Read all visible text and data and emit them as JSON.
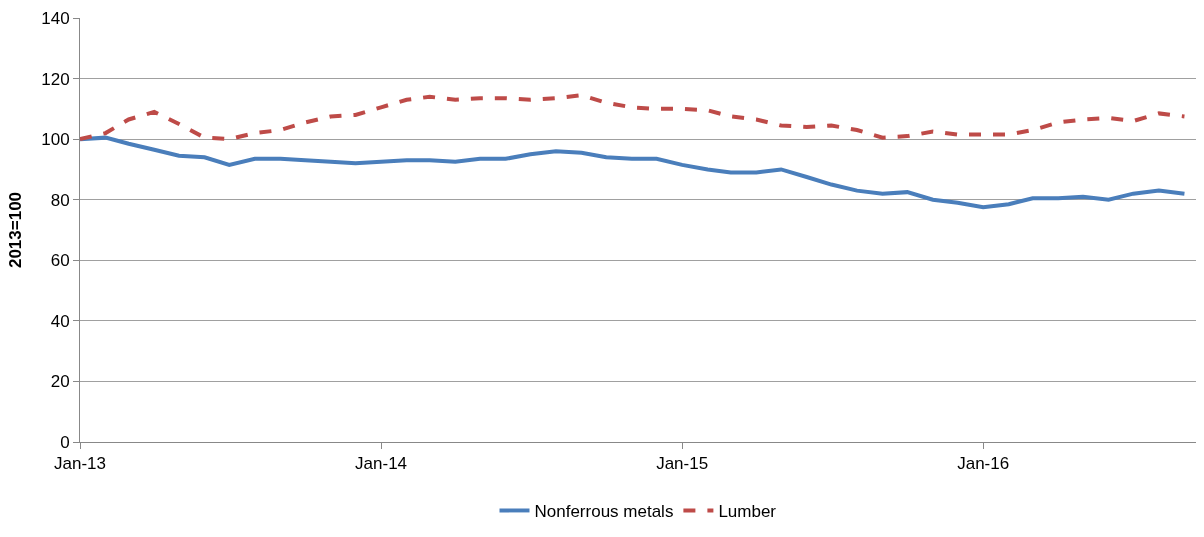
{
  "chart_data": {
    "type": "line",
    "ylabel": "2013=100",
    "x": [
      "2013-01",
      "2013-02",
      "2013-03",
      "2013-04",
      "2013-05",
      "2013-06",
      "2013-07",
      "2013-08",
      "2013-09",
      "2013-10",
      "2013-11",
      "2013-12",
      "2014-01",
      "2014-02",
      "2014-03",
      "2014-04",
      "2014-05",
      "2014-06",
      "2014-07",
      "2014-08",
      "2014-09",
      "2014-10",
      "2014-11",
      "2014-12",
      "2015-01",
      "2015-02",
      "2015-03",
      "2015-04",
      "2015-05",
      "2015-06",
      "2015-07",
      "2015-08",
      "2015-09",
      "2015-10",
      "2015-11",
      "2015-12",
      "2016-01",
      "2016-02",
      "2016-03",
      "2016-04",
      "2016-05",
      "2016-06",
      "2016-07",
      "2016-08",
      "2016-09"
    ],
    "series": [
      {
        "name": "Nonferrous metals",
        "color": "#4a7ebb",
        "line_style": "solid",
        "values": [
          100,
          100.5,
          98.5,
          96.5,
          94.5,
          94,
          91.5,
          93.5,
          93.5,
          93,
          92.5,
          92,
          92.5,
          93,
          93,
          92.5,
          93.5,
          93.5,
          95,
          96,
          95.5,
          94,
          93.5,
          93.5,
          91.5,
          90,
          89,
          89,
          90,
          87.5,
          85,
          83,
          82,
          82.5,
          80,
          79,
          77.5,
          78.5,
          80.5,
          80.5,
          81,
          80,
          82,
          83,
          82
        ]
      },
      {
        "name": "Lumber",
        "color": "#be4b48",
        "line_style": "dashed",
        "values": [
          100,
          102,
          106.5,
          109,
          105,
          100.5,
          100,
          102,
          103,
          105.5,
          107.5,
          108,
          110.5,
          113,
          114,
          113,
          113.5,
          113.5,
          113,
          113.5,
          114.5,
          112,
          110.5,
          110,
          110,
          109.5,
          107.5,
          106.5,
          104.5,
          104,
          104.5,
          103,
          100.5,
          101,
          102.5,
          101.5,
          101.5,
          101.5,
          103,
          105.5,
          106.5,
          107,
          106,
          108.5,
          107.5
        ]
      }
    ],
    "xlim": [
      "2013-01-01",
      "2016-09-15"
    ],
    "xticks": [
      {
        "value": "2013-01",
        "label": "Jan-13"
      },
      {
        "value": "2014-01",
        "label": "Jan-14"
      },
      {
        "value": "2015-01",
        "label": "Jan-15"
      },
      {
        "value": "2016-01",
        "label": "Jan-16"
      }
    ],
    "ylim": [
      0,
      140
    ],
    "yticks": [
      0,
      20,
      40,
      60,
      80,
      100,
      120,
      140
    ],
    "grid": "y",
    "legend": "bottom",
    "marker": "none"
  }
}
